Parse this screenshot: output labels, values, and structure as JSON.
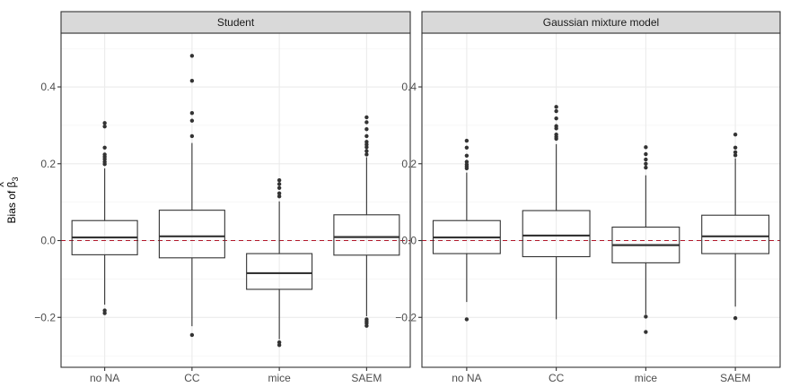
{
  "chart_data": {
    "type": "boxplot",
    "ylabel_prefix": "Bias of ",
    "ylabel_symbol": "β",
    "ylabel_hat": "^",
    "ylabel_subscript": "3",
    "ylim": [
      -0.33,
      0.54
    ],
    "y_ticks": [
      -0.2,
      0.0,
      0.2,
      0.4
    ],
    "y_tick_labels": [
      "−0.2",
      "0.0",
      "0.2",
      "0.4"
    ],
    "categories": [
      "no NA",
      "CC",
      "mice",
      "SAEM"
    ],
    "reference_line": {
      "y": 0.0,
      "color": "#b2182b",
      "style": "dashed"
    },
    "grid": true,
    "panels": [
      {
        "title": "Student",
        "boxes": [
          {
            "category": "no NA",
            "whisker_low": -0.167,
            "q1": -0.037,
            "median": 0.008,
            "q3": 0.052,
            "whisker_high": 0.188,
            "outliers": [
              -0.182,
              -0.189,
              0.199,
              0.205,
              0.212,
              0.218,
              0.224,
              0.242,
              0.297,
              0.306
            ]
          },
          {
            "category": "CC",
            "whisker_low": -0.223,
            "q1": -0.045,
            "median": 0.011,
            "q3": 0.079,
            "whisker_high": 0.254,
            "outliers": [
              -0.246,
              0.272,
              0.312,
              0.332,
              0.416,
              0.481
            ]
          },
          {
            "category": "mice",
            "whisker_low": -0.257,
            "q1": -0.127,
            "median": -0.085,
            "q3": -0.034,
            "whisker_high": 0.102,
            "outliers": [
              -0.265,
              -0.272,
              0.115,
              0.123,
              0.137,
              0.147,
              0.157
            ]
          },
          {
            "category": "SAEM",
            "whisker_low": -0.197,
            "q1": -0.038,
            "median": 0.009,
            "q3": 0.067,
            "whisker_high": 0.217,
            "outliers": [
              -0.205,
              -0.21,
              -0.215,
              -0.222,
              0.224,
              0.233,
              0.243,
              0.25,
              0.257,
              0.272,
              0.29,
              0.308,
              0.321
            ]
          }
        ]
      },
      {
        "title": "Gaussian mixture model",
        "boxes": [
          {
            "category": "no NA",
            "whisker_low": -0.16,
            "q1": -0.034,
            "median": 0.008,
            "q3": 0.052,
            "whisker_high": 0.177,
            "outliers": [
              -0.205,
              0.188,
              0.193,
              0.198,
              0.205,
              0.221,
              0.242,
              0.26
            ]
          },
          {
            "category": "CC",
            "whisker_low": -0.205,
            "q1": -0.042,
            "median": 0.013,
            "q3": 0.078,
            "whisker_high": 0.251,
            "outliers": [
              0.265,
              0.27,
              0.276,
              0.292,
              0.298,
              0.318,
              0.337,
              0.348
            ]
          },
          {
            "category": "mice",
            "whisker_low": -0.192,
            "q1": -0.058,
            "median": -0.012,
            "q3": 0.035,
            "whisker_high": 0.17,
            "outliers": [
              -0.198,
              -0.238,
              0.19,
              0.2,
              0.211,
              0.225,
              0.243
            ]
          },
          {
            "category": "SAEM",
            "whisker_low": -0.172,
            "q1": -0.034,
            "median": 0.011,
            "q3": 0.066,
            "whisker_high": 0.214,
            "outliers": [
              -0.202,
              0.222,
              0.23,
              0.242,
              0.276
            ]
          }
        ]
      }
    ]
  }
}
